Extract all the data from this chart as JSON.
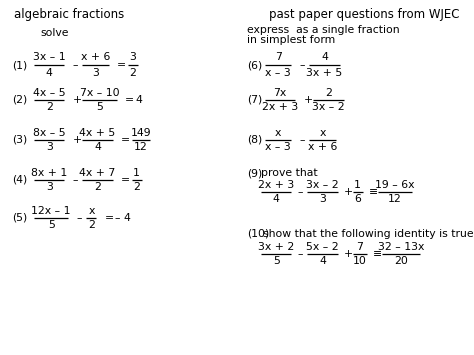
{
  "title_left": "algebraic fractions",
  "title_right": "past paper questions from WJEC",
  "subtitle_left": "solve",
  "subtitle_right": "express  as a single fraction\nin simplest form",
  "background_color": "#ffffff",
  "text_color": "#000000",
  "fs_title": 8.5,
  "fs_body": 7.8,
  "left_problems": [
    {
      "num": "(1)",
      "f1n": "3x – 1",
      "f1d": "4",
      "op": "–",
      "f2n": "x + 6",
      "f2d": "3",
      "eq": "=",
      "an": "3",
      "ad": "2"
    },
    {
      "num": "(2)",
      "f1n": "4x – 5",
      "f1d": "2",
      "op": "+",
      "f2n": "7x – 10",
      "f2d": "5",
      "eq": "=",
      "an": "4",
      "ad": ""
    },
    {
      "num": "(3)",
      "f1n": "8x – 5",
      "f1d": "3",
      "op": "+",
      "f2n": "4x + 5",
      "f2d": "4",
      "eq": "=",
      "an": "149",
      "ad": "12"
    },
    {
      "num": "(4)",
      "f1n": "8x + 1",
      "f1d": "3",
      "op": "–",
      "f2n": "4x + 7",
      "f2d": "2",
      "eq": "=",
      "an": "1",
      "ad": "2"
    },
    {
      "num": "(5)",
      "f1n": "12x – 1",
      "f1d": "5",
      "op": "–",
      "f2n": "x",
      "f2d": "2",
      "eq": "=",
      "an": "– 4",
      "ad": ""
    }
  ],
  "right_simple": [
    {
      "num": "(6)",
      "f1n": "7",
      "f1d": "x – 3",
      "op": "–",
      "f2n": "4",
      "f2d": "3x + 5"
    },
    {
      "num": "(7)",
      "f1n": "7x",
      "f1d": "2x + 3",
      "op": "+",
      "f2n": "2",
      "f2d": "3x – 2"
    },
    {
      "num": "(8)",
      "f1n": "x",
      "f1d": "x – 3",
      "op": "–",
      "f2n": "x",
      "f2d": "x + 6"
    }
  ],
  "prob9_label": "prove that",
  "prob9_f1n": "2x + 3",
  "prob9_f1d": "4",
  "prob9_op1": "–",
  "prob9_f2n": "3x – 2",
  "prob9_f2d": "3",
  "prob9_op2": "+",
  "prob9_f3n": "1",
  "prob9_f3d": "6",
  "prob9_eq": "≡",
  "prob9_an": "19 – 6x",
  "prob9_ad": "12",
  "prob10_label": "show that the following identity is true",
  "prob10_f1n": "3x + 2",
  "prob10_f1d": "5",
  "prob10_op1": "–",
  "prob10_f2n": "5x – 2",
  "prob10_f2d": "4",
  "prob10_op2": "+",
  "prob10_f3n": "7",
  "prob10_f3d": "10",
  "prob10_eq": "≡",
  "prob10_an": "32 – 13x",
  "prob10_ad": "20"
}
